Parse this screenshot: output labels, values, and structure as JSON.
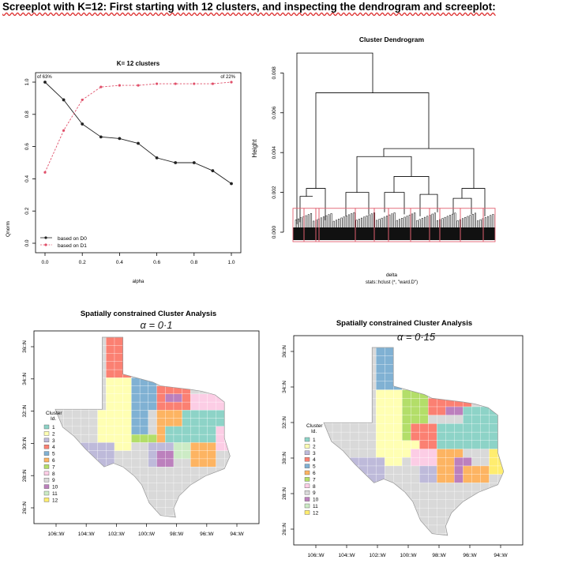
{
  "heading": "Screeplot with K=12: First starting with 12 clusters, and inspecting the dendrogram and screeplot:",
  "chart_data": [
    {
      "type": "line",
      "title": "K= 12 clusters",
      "xlabel": "alpha",
      "ylabel": "Qnorm",
      "top_left_label": "of 63%",
      "top_right_label": "of 22%",
      "x": [
        0.0,
        0.1,
        0.2,
        0.3,
        0.4,
        0.5,
        0.6,
        0.7,
        0.8,
        0.9,
        1.0
      ],
      "xlim": [
        0,
        1
      ],
      "ylim": [
        0,
        1
      ],
      "xticks": [
        "0.0",
        "0.2",
        "0.4",
        "0.6",
        "0.8",
        "1.0"
      ],
      "yticks": [
        "0.0",
        "0.2",
        "0.4",
        "0.6",
        "0.8",
        "1.0"
      ],
      "series": [
        {
          "name": "based on D0",
          "color": "#222222",
          "values": [
            1.0,
            0.89,
            0.74,
            0.66,
            0.65,
            0.62,
            0.53,
            0.5,
            0.5,
            0.45,
            0.37
          ]
        },
        {
          "name": "based on D1",
          "color": "#e0506a",
          "values": [
            0.44,
            0.7,
            0.89,
            0.97,
            0.98,
            0.98,
            0.99,
            0.99,
            0.99,
            0.99,
            1.0
          ]
        }
      ],
      "legend": "bottom-left"
    },
    {
      "type": "dendrogram",
      "title": "Cluster Dendrogram",
      "xlabel": "delta",
      "sublabel": "stats::hclust (*, \"ward.D\")",
      "ylabel": "Height",
      "ylim": [
        0,
        0.009
      ],
      "yticks": [
        "0.000",
        "0.002",
        "0.004",
        "0.006",
        "0.008"
      ],
      "clusters": 12,
      "box_color": "#e06070"
    },
    {
      "type": "map",
      "title": "Spatially constrained Cluster Analysis",
      "annotation": "α = 0·1",
      "legend_title": "Cluster Id.",
      "legend_labels": [
        "1",
        "2",
        "3",
        "4",
        "5",
        "6",
        "7",
        "8",
        "9",
        "10",
        "11",
        "12"
      ],
      "xticks": [
        "106□W",
        "104□W",
        "102□W",
        "100□W",
        "98□W",
        "96□W",
        "94□W"
      ],
      "yticks": [
        "36□N",
        "34□N",
        "32□N",
        "30□N",
        "28□N",
        "26□N"
      ]
    },
    {
      "type": "map",
      "title": "Spatially constrained Cluster Analysis",
      "annotation": "α = 0·15",
      "legend_title": "Cluster Id.",
      "legend_labels": [
        "1",
        "2",
        "3",
        "4",
        "5",
        "6",
        "7",
        "8",
        "9",
        "10",
        "11",
        "12"
      ],
      "xticks": [
        "106□W",
        "104□W",
        "102□W",
        "100□W",
        "98□W",
        "96□W",
        "94□W"
      ],
      "yticks": [
        "36□N",
        "34□N",
        "32□N",
        "30□N",
        "28□N",
        "26□N"
      ]
    }
  ],
  "colors": {
    "c1": "#8dd3c7",
    "c2": "#ffffb3",
    "c3": "#bebada",
    "c4": "#fb8072",
    "c5": "#80b1d3",
    "c6": "#fdb462",
    "c7": "#b3de69",
    "c8": "#fccde5",
    "c9": "#d9d9d9",
    "c10": "#bc80bd",
    "c11": "#ccebc5",
    "c12": "#ffed6f"
  }
}
